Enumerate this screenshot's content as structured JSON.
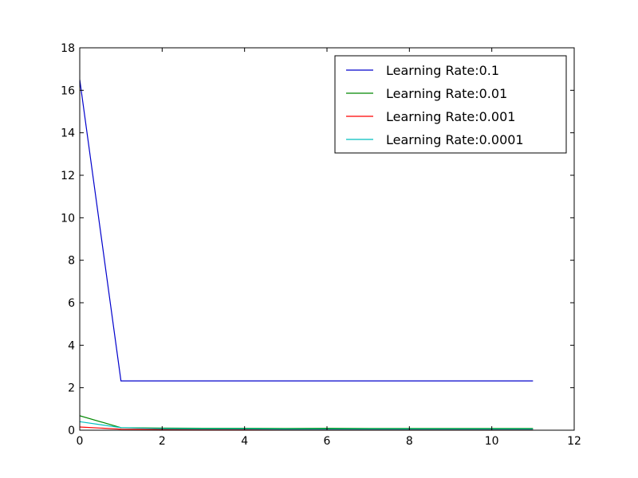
{
  "chart_data": {
    "type": "line",
    "title": "",
    "xlabel": "",
    "ylabel": "",
    "xlim": [
      0,
      12
    ],
    "ylim": [
      0,
      18
    ],
    "xticks": [
      0,
      2,
      4,
      6,
      8,
      10,
      12
    ],
    "yticks": [
      0,
      2,
      4,
      6,
      8,
      10,
      12,
      14,
      16,
      18
    ],
    "x": [
      0,
      1,
      2,
      3,
      4,
      5,
      6,
      7,
      8,
      9,
      10,
      11
    ],
    "grid": false,
    "legend_position": "top-right",
    "series": [
      {
        "name": "Learning Rate:0.1",
        "color": "#0000cc",
        "values": [
          16.5,
          2.32,
          2.32,
          2.32,
          2.32,
          2.32,
          2.32,
          2.32,
          2.32,
          2.32,
          2.32,
          2.32
        ]
      },
      {
        "name": "Learning Rate:0.01",
        "color": "#008800",
        "values": [
          0.68,
          0.12,
          0.1,
          0.09,
          0.09,
          0.08,
          0.09,
          0.08,
          0.08,
          0.08,
          0.08,
          0.08
        ]
      },
      {
        "name": "Learning Rate:0.001",
        "color": "#ff0000",
        "values": [
          0.15,
          0.05,
          0.04,
          0.04,
          0.04,
          0.03,
          0.03,
          0.03,
          0.03,
          0.03,
          0.03,
          0.03
        ]
      },
      {
        "name": "Learning Rate:0.0001",
        "color": "#00bfbf",
        "values": [
          0.4,
          0.12,
          0.07,
          0.06,
          0.06,
          0.05,
          0.05,
          0.05,
          0.05,
          0.05,
          0.05,
          0.05
        ]
      }
    ]
  }
}
